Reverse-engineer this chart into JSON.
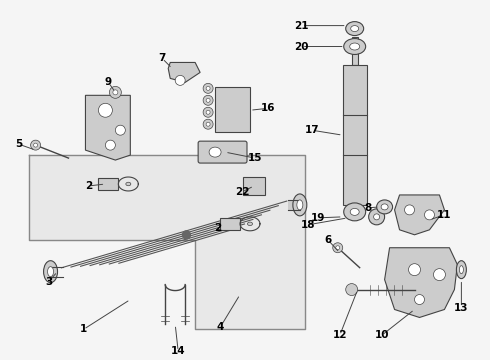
{
  "bg_color": "#f5f5f5",
  "fig_width": 4.9,
  "fig_height": 3.6,
  "dpi": 100,
  "line_color": "#444444",
  "fill_color": "#aaaaaa",
  "light_fill": "#cccccc",
  "dark_fill": "#777777"
}
